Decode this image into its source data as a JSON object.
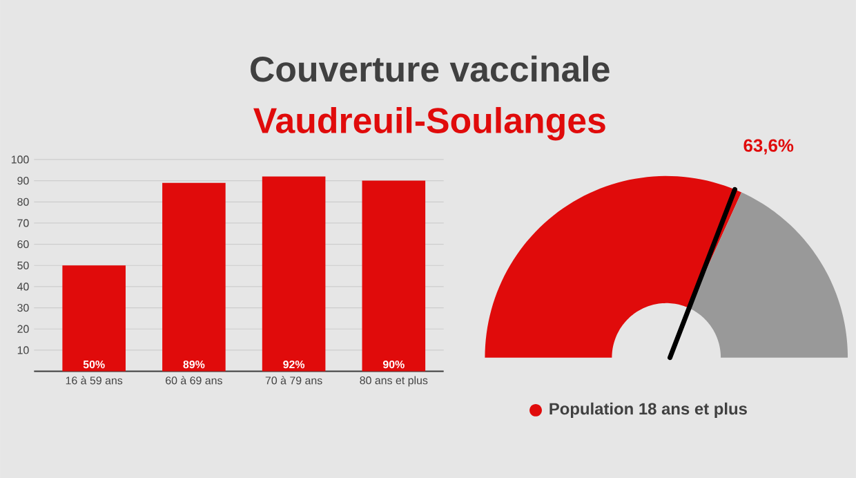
{
  "chart_data": [
    {
      "type": "bar",
      "title": "Couverture vaccinale",
      "subtitle": "Vaudreuil-Soulanges",
      "categories": [
        "16 à 59 ans",
        "60 à 69 ans",
        "70 à 79 ans",
        "80 ans et plus"
      ],
      "values": [
        50,
        89,
        92,
        90
      ],
      "value_labels": [
        "50%",
        "89%",
        "92%",
        "90%"
      ],
      "color": "#e00b0b",
      "ylim": [
        0,
        100
      ],
      "yticks": [
        {
          "value": 0,
          "label": null
        },
        10,
        20,
        30,
        40,
        50,
        60,
        70,
        80,
        90,
        100
      ],
      "grid": "y"
    },
    {
      "type": "donut",
      "categories": [
        "Population 18 ans et plus",
        null
      ],
      "values": [
        63.6,
        36.4
      ],
      "colors": [
        "#e00b0b",
        "#999999"
      ],
      "value_labels": [
        "63,6%",
        null
      ],
      "needle": "Population 18 ans et plus",
      "legend": "bottom"
    }
  ]
}
